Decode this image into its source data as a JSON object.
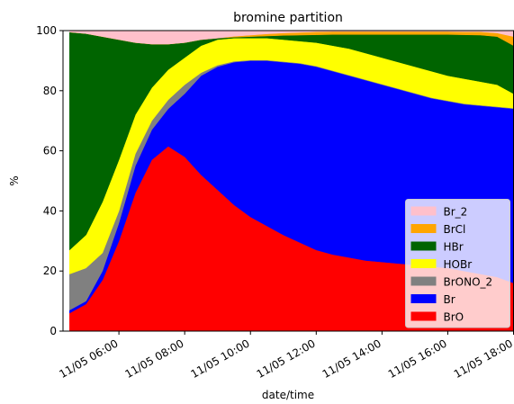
{
  "chart_data": {
    "type": "stacked_area",
    "title": "bromine partition",
    "xlabel": "date/time",
    "ylabel": "%",
    "x": [
      "11/05 04:30",
      "11/05 05:00",
      "11/05 05:30",
      "11/05 06:00",
      "11/05 06:30",
      "11/05 07:00",
      "11/05 07:30",
      "11/05 08:00",
      "11/05 08:30",
      "11/05 09:00",
      "11/05 09:30",
      "11/05 10:00",
      "11/05 10:30",
      "11/05 11:00",
      "11/05 11:30",
      "11/05 12:00",
      "11/05 12:30",
      "11/05 13:00",
      "11/05 13:30",
      "11/05 14:00",
      "11/05 14:30",
      "11/05 15:00",
      "11/05 15:30",
      "11/05 16:00",
      "11/05 16:30",
      "11/05 17:00",
      "11/05 17:30",
      "11/05 18:00"
    ],
    "xlim": [
      "11/05 04:18",
      "11/05 18:00"
    ],
    "xticks": [
      "11/05 06:00",
      "11/05 08:00",
      "11/05 10:00",
      "11/05 12:00",
      "11/05 14:00",
      "11/05 16:00",
      "11/05 18:00"
    ],
    "ylim": [
      0,
      100
    ],
    "yticks": [
      0,
      20,
      40,
      60,
      80,
      100
    ],
    "legend": "lower right",
    "series": [
      {
        "name": "BrO",
        "color": "#ff0000",
        "values": [
          6,
          9,
          17,
          30,
          46,
          57,
          61.5,
          58,
          52,
          47,
          42,
          38,
          35,
          32,
          29.5,
          27,
          25.5,
          24.5,
          23.5,
          23,
          22.5,
          22,
          21.5,
          21,
          20,
          19,
          18,
          16
        ]
      },
      {
        "name": "Br",
        "color": "#0000ff",
        "values": [
          1,
          1,
          3,
          6,
          9,
          10,
          12.5,
          21,
          33,
          41,
          47.5,
          52,
          55,
          57.5,
          59.5,
          61,
          61,
          60.5,
          60,
          59,
          58,
          57,
          56,
          55.5,
          55.5,
          56,
          56.5,
          58
        ]
      },
      {
        "name": "BrONO_2",
        "color": "#808080",
        "values": [
          12,
          11,
          6,
          4,
          4,
          3,
          3,
          3,
          1,
          0.5,
          0.3,
          0.2,
          0.2,
          0.2,
          0.2,
          0.2,
          0.2,
          0.2,
          0.2,
          0.2,
          0.2,
          0.2,
          0.2,
          0.2,
          0.2,
          0.2,
          0.2,
          0.2
        ]
      },
      {
        "name": "HOBr",
        "color": "#ffff00",
        "values": [
          8,
          11,
          17,
          17,
          13,
          11,
          10,
          9,
          9,
          8.5,
          7.7,
          7.3,
          7.3,
          7.3,
          7.3,
          7.8,
          8.3,
          8.8,
          8.8,
          8.8,
          8.8,
          8.8,
          8.8,
          8.3,
          8.3,
          7.8,
          7.3,
          4.8
        ]
      },
      {
        "name": "HBr",
        "color": "#006400",
        "values": [
          72.5,
          67,
          55,
          40,
          24,
          14.5,
          8.5,
          5,
          2,
          0.5,
          0.3,
          0.5,
          0.7,
          1.4,
          2,
          2.6,
          3.7,
          4.7,
          6.2,
          7.7,
          9.2,
          10.7,
          12.2,
          13.7,
          14.6,
          15.5,
          16,
          16
        ]
      },
      {
        "name": "BrCl",
        "color": "#ffa500",
        "values": [
          0,
          0,
          0,
          0,
          0,
          0,
          0,
          0,
          0,
          0,
          0.3,
          0.5,
          0.7,
          0.8,
          0.9,
          1,
          1,
          1,
          1,
          1,
          1,
          1,
          1,
          1,
          1,
          1.1,
          1.2,
          3
        ]
      },
      {
        "name": "Br_2",
        "color": "#ffc0cb",
        "values": [
          0.5,
          1,
          2,
          3,
          4,
          4.5,
          4.5,
          4,
          3,
          2.5,
          1.9,
          1.5,
          1.1,
          0.8,
          0.6,
          0.4,
          0.3,
          0.3,
          0.3,
          0.3,
          0.3,
          0.3,
          0.3,
          0.3,
          0.4,
          0.4,
          0.8,
          2
        ]
      }
    ]
  }
}
